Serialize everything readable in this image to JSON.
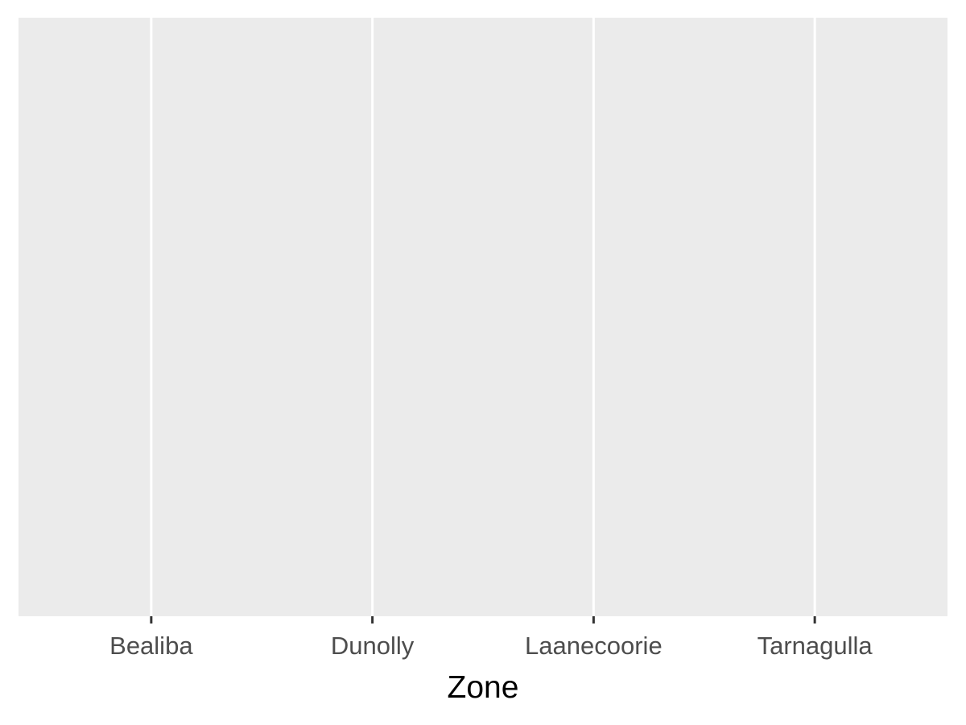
{
  "chart_data": {
    "type": "bar",
    "categories": [
      "Bealiba",
      "Dunolly",
      "Laanecoorie",
      "Tarnagulla"
    ],
    "series": [],
    "title": "",
    "xlabel": "Zone",
    "ylabel": "",
    "grid": true,
    "legend": "none",
    "colors": {
      "panel": "#ebebeb",
      "grid": "#ffffff",
      "tick": "#333333",
      "tick_label": "#4d4d4d",
      "axis_title": "#000000"
    }
  }
}
